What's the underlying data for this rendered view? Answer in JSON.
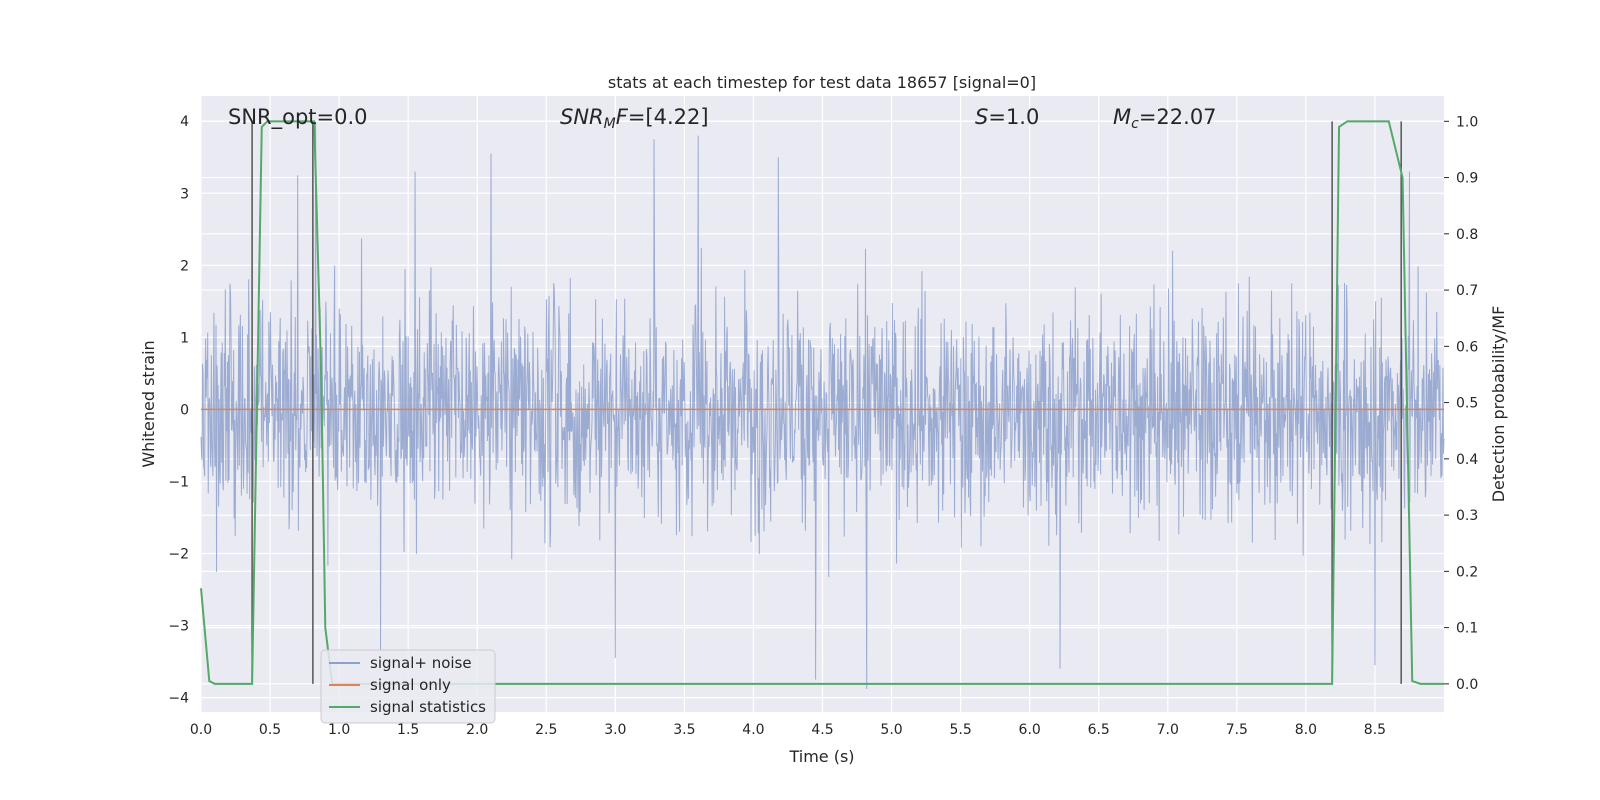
{
  "chart_data": {
    "type": "line",
    "title": "stats at each timestep for test data 18657 [signal=0]",
    "xlabel": "Time (s)",
    "ylabel_left": "Whitened strain",
    "ylabel_right": "Detection probability/MF",
    "xlim": [
      0.0,
      9.0
    ],
    "ylim_left": [
      -4.2,
      4.35
    ],
    "ylim_right": [
      -0.05,
      1.045
    ],
    "grid": true,
    "background": "#eaeaf2",
    "x_ticks": [
      "0.0",
      "0.5",
      "1.0",
      "1.5",
      "2.0",
      "2.5",
      "3.0",
      "3.5",
      "4.0",
      "4.5",
      "5.0",
      "5.5",
      "6.0",
      "6.5",
      "7.0",
      "7.5",
      "8.0",
      "8.5"
    ],
    "x_tick_values": [
      0.0,
      0.5,
      1.0,
      1.5,
      2.0,
      2.5,
      3.0,
      3.5,
      4.0,
      4.5,
      5.0,
      5.5,
      6.0,
      6.5,
      7.0,
      7.5,
      8.0,
      8.5
    ],
    "y_left_ticks": [
      "4",
      "3",
      "2",
      "1",
      "0",
      "−1",
      "−2",
      "−3",
      "−4"
    ],
    "y_left_tick_values": [
      4,
      3,
      2,
      1,
      0,
      -1,
      -2,
      -3,
      -4
    ],
    "y_right_ticks": [
      "1.0",
      "0.9",
      "0.8",
      "0.7",
      "0.6",
      "0.5",
      "0.4",
      "0.3",
      "0.2",
      "0.1",
      "0.0"
    ],
    "y_right_tick_values": [
      1.0,
      0.9,
      0.8,
      0.7,
      0.6,
      0.5,
      0.4,
      0.3,
      0.2,
      0.1,
      0.0
    ],
    "annotations": {
      "snr_opt": "SNR_opt=0.0",
      "snr_mf_var": "SNR",
      "snr_mf_sub": "M",
      "snr_mf_f": "F",
      "snr_mf_val": "=[4.22]",
      "s_var": "S",
      "s_val": "=1.0",
      "mc_var": "M",
      "mc_sub": "c",
      "mc_val": "=22.07"
    },
    "legend": {
      "placement": "lower-left",
      "entries": [
        "signal+ noise",
        "signal only",
        "signal statistics"
      ]
    },
    "series": [
      {
        "name": "signal+ noise",
        "axis": "left",
        "color": "#8da0cb",
        "description_kind": "noise",
        "envelope": {
          "typical_high": 2.3,
          "typical_low": -2.2,
          "max": 3.98,
          "min": -3.88
        },
        "notable_peaks": [
          [
            0.83,
            3.98
          ],
          [
            3.28,
            3.75
          ],
          [
            3.6,
            3.8
          ],
          [
            4.18,
            3.5
          ],
          [
            2.1,
            3.55
          ],
          [
            0.7,
            3.25
          ],
          [
            1.55,
            3.3
          ],
          [
            8.75,
            3.3
          ]
        ],
        "notable_troughs": [
          [
            1.3,
            -3.35
          ],
          [
            3.0,
            -3.45
          ],
          [
            4.45,
            -3.75
          ],
          [
            4.82,
            -3.88
          ],
          [
            6.22,
            -3.6
          ],
          [
            8.5,
            -3.55
          ]
        ]
      },
      {
        "name": "signal only",
        "axis": "left",
        "color": "#dd8452",
        "x": [
          0.0,
          9.0
        ],
        "values": [
          0.0,
          0.0
        ]
      },
      {
        "name": "signal statistics",
        "axis": "right",
        "color": "#55a868",
        "x": [
          0.0,
          0.06,
          0.1,
          0.37,
          0.44,
          0.48,
          0.82,
          0.87,
          0.9,
          0.95,
          8.19,
          8.24,
          8.3,
          8.6,
          8.7,
          8.77,
          8.83,
          9.0
        ],
        "values": [
          0.17,
          0.005,
          0.0,
          0.0,
          0.99,
          1.0,
          1.0,
          0.55,
          0.1,
          0.0,
          0.0,
          0.99,
          1.0,
          1.0,
          0.9,
          0.005,
          0.0,
          0.0
        ]
      }
    ],
    "vertical_lines": {
      "color": "#555555",
      "x": [
        0.37,
        0.81,
        8.19,
        8.69
      ],
      "range_right": [
        0.0,
        1.0
      ]
    }
  }
}
